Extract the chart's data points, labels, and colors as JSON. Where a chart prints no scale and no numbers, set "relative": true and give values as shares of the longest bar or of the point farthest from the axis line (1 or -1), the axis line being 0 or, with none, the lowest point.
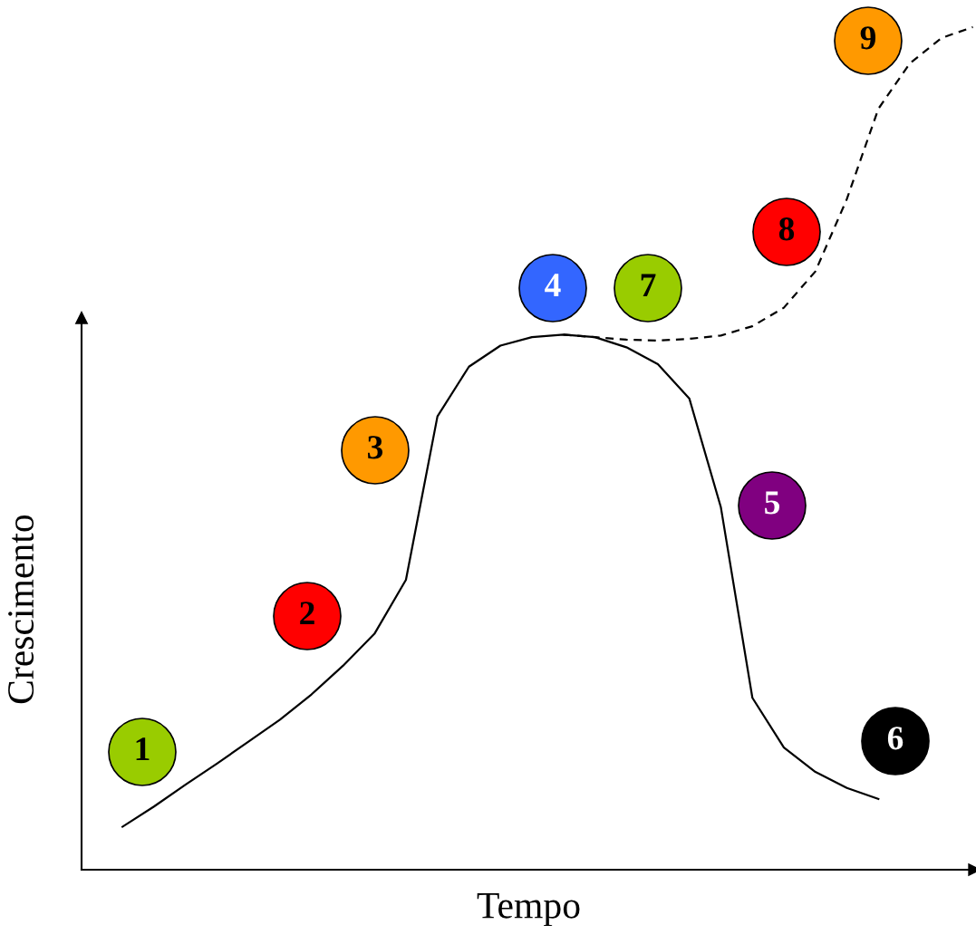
{
  "chart_data": {
    "type": "line",
    "relative": true,
    "xlabel": "Tempo",
    "ylabel": "Crescimento",
    "grid": false,
    "categories": [
      null,
      null,
      null,
      null,
      null,
      null,
      null,
      null,
      null,
      null,
      null,
      null,
      null,
      null,
      null,
      null,
      null,
      null,
      null,
      null,
      null,
      null,
      null,
      null,
      null,
      null,
      null,
      null
    ],
    "series": [
      {
        "color": "#000000",
        "line_style": "solid",
        "values": [
          0.051,
          0.075,
          0.101,
          0.126,
          0.152,
          0.178,
          0.208,
          0.242,
          0.28,
          0.344,
          0.538,
          0.597,
          0.622,
          0.632,
          0.635,
          0.632,
          0.62,
          0.6,
          0.559,
          0.43,
          0.204,
          0.145,
          0.116,
          0.097,
          0.084,
          null,
          null,
          null
        ]
      },
      {
        "color": "#000000",
        "line_style": "dashed",
        "values": [
          null,
          null,
          null,
          null,
          null,
          null,
          null,
          null,
          null,
          null,
          null,
          null,
          null,
          null,
          0.635,
          0.632,
          0.629,
          0.628,
          0.63,
          0.634,
          0.645,
          0.667,
          0.71,
          0.796,
          0.903,
          0.957,
          0.987,
          1.0
        ]
      }
    ],
    "annotations": [
      "1",
      "2",
      "3",
      "4",
      "5",
      "6",
      "7",
      "8",
      "9"
    ]
  }
}
